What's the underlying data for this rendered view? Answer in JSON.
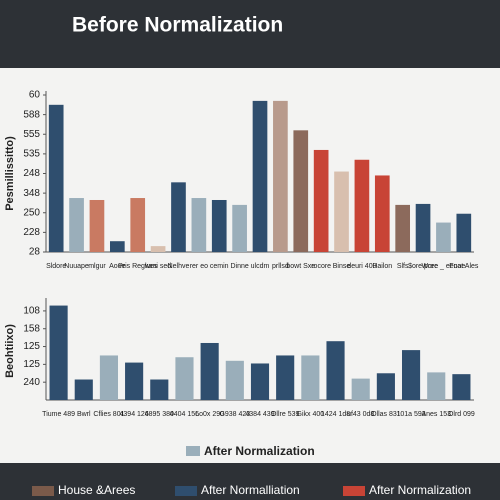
{
  "header": {
    "title": "Before Normalization"
  },
  "chart_data": [
    {
      "type": "bar",
      "ylabel": "Pesmillissitto)",
      "categories": [
        "Sldore",
        "Nuuape",
        "mlgur",
        "Aoue",
        "Pris Regwes",
        "kani sed",
        "Nelhve",
        "rer eo",
        "cemin",
        "Dinne",
        "ulcdm",
        "prllsd",
        "bowt Sxe",
        "rocore",
        "Binse",
        "deuri 400",
        "Hailon",
        "Slfs",
        "$ore pree",
        "Wore _ eeoae",
        "Fnat Ales"
      ],
      "values": [
        7.5,
        2.75,
        2.65,
        0.55,
        2.75,
        0.3,
        3.55,
        2.75,
        2.65,
        2.4,
        7.7,
        7.7,
        6.2,
        5.2,
        4.1,
        4.7,
        3.9,
        2.4,
        2.45,
        1.5,
        1.95
      ],
      "colors": [
        "#2f4e6e",
        "#9aaeba",
        "#c97a62",
        "#2f4e6e",
        "#c97a62",
        "#d8bfae",
        "#2f4e6e",
        "#9aaeba",
        "#2f4e6e",
        "#9aaeba",
        "#2f4e6e",
        "#b89a8c",
        "#8c6a5c",
        "#c84436",
        "#d8bfae",
        "#c84436",
        "#c84436",
        "#8c6a5c",
        "#2f4e6e",
        "#9aaeba",
        "#2f4e6e"
      ],
      "ylim": [
        0,
        8
      ],
      "yticks": [
        {
          "value": 0,
          "label": "28"
        },
        {
          "value": 1,
          "label": "228"
        },
        {
          "value": 2,
          "label": "250"
        },
        {
          "value": 3,
          "label": "348"
        },
        {
          "value": 4,
          "label": "248"
        },
        {
          "value": 5,
          "label": "535"
        },
        {
          "value": 6,
          "label": "555"
        },
        {
          "value": 7,
          "label": "588"
        },
        {
          "value": 8,
          "label": "60"
        }
      ],
      "grid": false
    },
    {
      "type": "bar",
      "ylabel": "Beohtiixo)",
      "series_name": "After Normalization",
      "legend_color": "#9aaeba",
      "categories": [
        "Tiume 489",
        "Bwrl",
        "Cflies 801",
        "4394 126",
        "4895 380",
        "4404 156",
        "Lo0x 290",
        "G938 423",
        "4384 439",
        "Ollre 539",
        "Gikx 400",
        "1424 1d8",
        "uf43 0d8",
        "Ollas 831",
        "101a 593",
        "Anes 153",
        "Olrd 099"
      ],
      "values": [
        5.3,
        1.15,
        2.5,
        2.1,
        1.15,
        2.4,
        3.2,
        2.2,
        2.05,
        2.5,
        2.5,
        3.3,
        1.2,
        1.5,
        2.8,
        1.55,
        1.45
      ],
      "colors": [
        "#2f4e6e",
        "#2f4e6e",
        "#9aaeba",
        "#2f4e6e",
        "#2f4e6e",
        "#9aaeba",
        "#2f4e6e",
        "#9aaeba",
        "#2f4e6e",
        "#2f4e6e",
        "#9aaeba",
        "#2f4e6e",
        "#9aaeba",
        "#2f4e6e",
        "#2f4e6e",
        "#9aaeba",
        "#2f4e6e"
      ],
      "ylim": [
        0,
        5.5
      ],
      "yticks": [
        {
          "value": 1,
          "label": "240"
        },
        {
          "value": 2,
          "label": "125"
        },
        {
          "value": 3,
          "label": "125"
        },
        {
          "value": 4,
          "label": "158"
        },
        {
          "value": 5,
          "label": "108"
        }
      ],
      "grid": false
    }
  ],
  "legend": [
    {
      "name": "House &Arees",
      "color": "#7a5a4a"
    },
    {
      "name": "After Normalliation",
      "color": "#2f4e6e"
    },
    {
      "name": "After Normalization",
      "color": "#c84436"
    }
  ]
}
